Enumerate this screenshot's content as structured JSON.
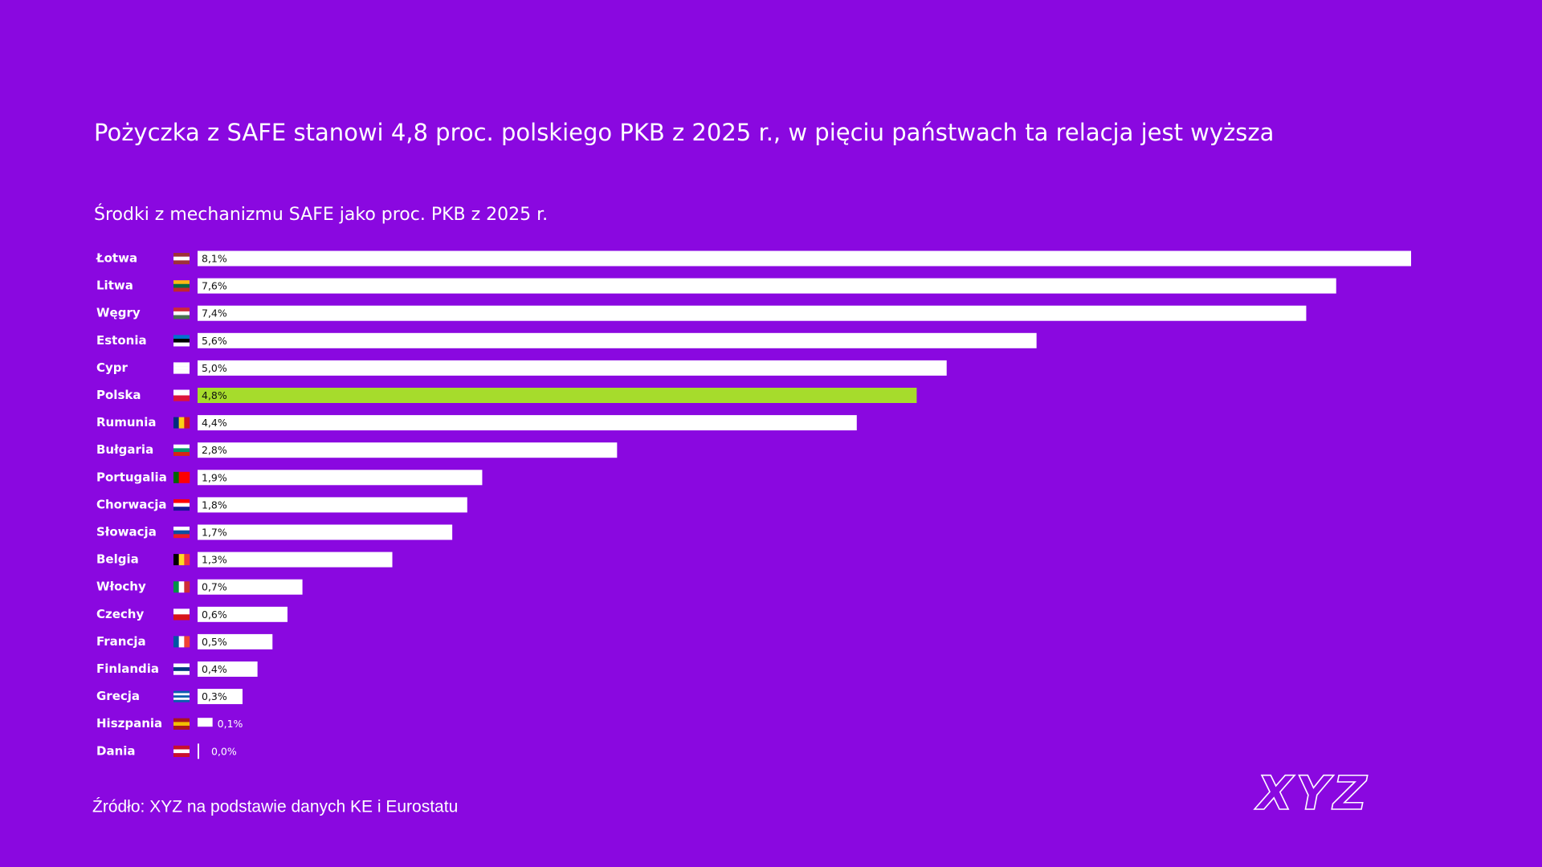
{
  "chart_data": {
    "type": "barh",
    "title": "Pożyczka z SAFE stanowi 4,8 proc. polskiego PKB z 2025 r., w pięciu państwach ta relacja jest wyższa",
    "subtitle": "Środki z mechanizmu SAFE jako proc. PKB z 2025 r.",
    "categories": [
      "Łotwa",
      "Litwa",
      "Węgry",
      "Estonia",
      "Cypr",
      "Polska",
      "Rumunia",
      "Bułgaria",
      "Portugalia",
      "Chorwacja",
      "Słowacja",
      "Belgia",
      "Włochy",
      "Czechy",
      "Francja",
      "Finlandia",
      "Grecja",
      "Hiszpania",
      "Dania"
    ],
    "values": [
      8.1,
      7.6,
      7.4,
      5.6,
      5.0,
      4.8,
      4.4,
      2.8,
      1.9,
      1.8,
      1.7,
      1.3,
      0.7,
      0.6,
      0.5,
      0.4,
      0.3,
      0.1,
      0.0
    ],
    "value_labels": [
      "8,1%",
      "7,6%",
      "7,4%",
      "5,6%",
      "5,0%",
      "4,8%",
      "4,4%",
      "2,8%",
      "1,9%",
      "1,8%",
      "1,7%",
      "1,3%",
      "0,7%",
      "0,6%",
      "0,5%",
      "0,4%",
      "0,3%",
      "0,1%",
      "0,0%"
    ],
    "colors": [
      "#ffffff",
      "#ffffff",
      "#ffffff",
      "#ffffff",
      "#ffffff",
      "#a6dc2c",
      "#ffffff",
      "#ffffff",
      "#ffffff",
      "#ffffff",
      "#ffffff",
      "#ffffff",
      "#ffffff",
      "#ffffff",
      "#ffffff",
      "#ffffff",
      "#ffffff",
      "#ffffff",
      "#ffffff"
    ],
    "source": "Źródło:  XYZ na podstawie danych KE i Eurostatu",
    "logo": "XYZ"
  }
}
